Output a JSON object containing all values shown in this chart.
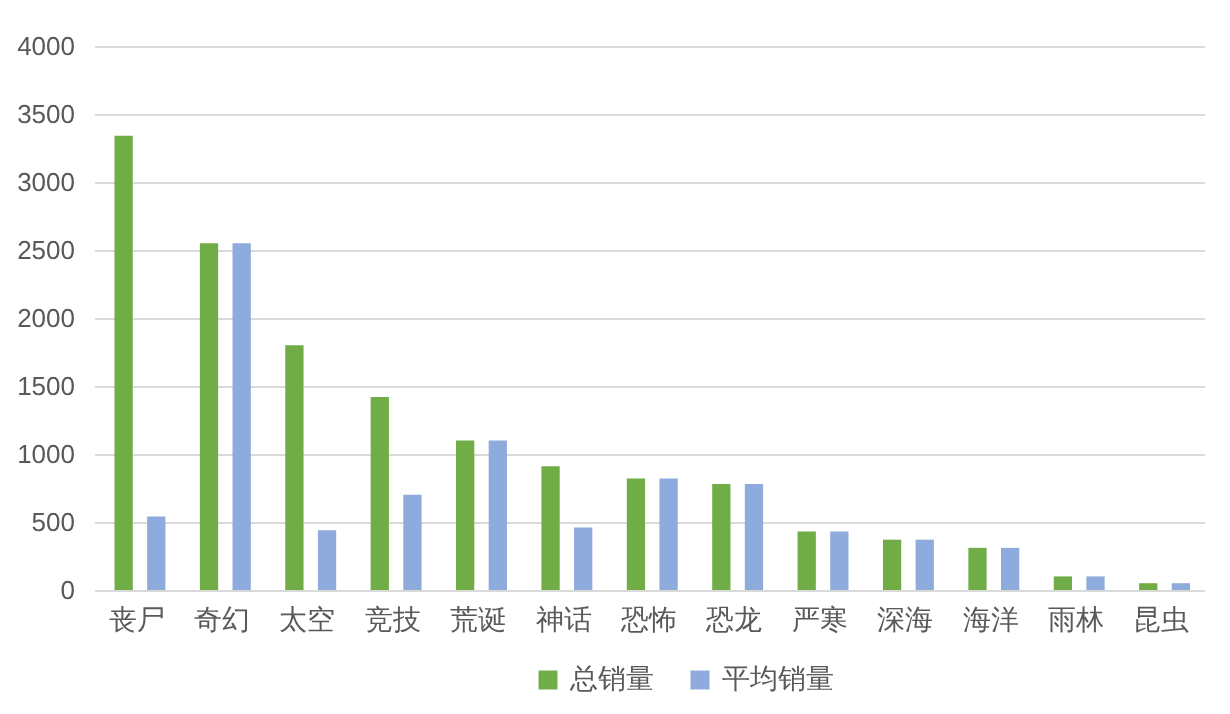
{
  "chart_data": {
    "type": "bar",
    "categories": [
      "丧尸",
      "奇幻",
      "太空",
      "竞技",
      "荒诞",
      "神话",
      "恐怖",
      "恐龙",
      "严寒",
      "深海",
      "海洋",
      "雨林",
      "昆虫"
    ],
    "series": [
      {
        "name": "总销量",
        "color": "#70ad47",
        "values": [
          3340,
          2550,
          1800,
          1420,
          1100,
          910,
          820,
          780,
          430,
          370,
          310,
          100,
          50
        ]
      },
      {
        "name": "平均销量",
        "color": "#8faadc",
        "values": [
          540,
          2550,
          440,
          700,
          1100,
          460,
          820,
          780,
          430,
          370,
          310,
          100,
          50
        ]
      }
    ],
    "ylim": [
      0,
      4000
    ],
    "yticks": [
      0,
      500,
      1000,
      1500,
      2000,
      2500,
      3000,
      3500,
      4000
    ],
    "grid": "y",
    "legend": "bottom"
  }
}
